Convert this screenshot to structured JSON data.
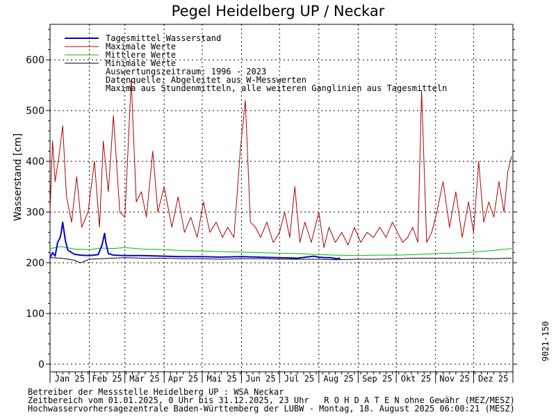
{
  "chart_data": {
    "type": "line",
    "title": "Pegel Heidelberg UP / Neckar",
    "ylabel": "Wasserstand [cm]",
    "ylim": [
      -15,
      670
    ],
    "yticks": [
      0,
      100,
      200,
      300,
      400,
      500,
      600
    ],
    "x_range": [
      "01.01.2025",
      "31.12.2025"
    ],
    "months": [
      "Jan 25",
      "Feb 25",
      "Mär 25",
      "Apr 25",
      "Mai 25",
      "Jun 25",
      "Jul 25",
      "Aug 25",
      "Sep 25",
      "Okt 25",
      "Nov 25",
      "Dez 25"
    ],
    "grid": true,
    "legend_position": "top-left",
    "legend_notes": [
      "Auswertungszeitraum: 1996 - 2023",
      "Datenquelle: Abgeleitet aus W-Messwerten",
      "Maxima aus Stundenmitteln, alle weiteren Ganglinien aus Tagesmitteln"
    ],
    "series": [
      {
        "name": "Tagesmittel Wasserstand",
        "color": "#0000cc",
        "x": [
          "01.01.",
          "03.01.",
          "05.01.",
          "07.01.",
          "09.01.",
          "10.01.",
          "11.01.",
          "13.01.",
          "15.01.",
          "20.01.",
          "25.01.",
          "01.02.",
          "08.02.",
          "11.02.",
          "13.02.",
          "14.02.",
          "16.02.",
          "20.02.",
          "01.03.",
          "15.03.",
          "01.04.",
          "15.04.",
          "01.05.",
          "15.05.",
          "01.06.",
          "15.06.",
          "01.07.",
          "15.07.",
          "28.07.",
          "01.08.",
          "06.08.",
          "10.08.",
          "15.08.",
          "18.08."
        ],
        "values": [
          210,
          220,
          213,
          240,
          250,
          262,
          280,
          245,
          225,
          217,
          215,
          214,
          216,
          235,
          258,
          240,
          218,
          215,
          214,
          214,
          213,
          212,
          212,
          211,
          212,
          211,
          210,
          209,
          213,
          211,
          210,
          210,
          208,
          209
        ]
      },
      {
        "name": "Maximale Werte",
        "color": "#aa0000",
        "x": [
          "01.01.",
          "03.01.",
          "05.01.",
          "08.01.",
          "11.01.",
          "14.01.",
          "18.01.",
          "22.01.",
          "26.01.",
          "31.01.",
          "05.02.",
          "09.02.",
          "12.02.",
          "16.02.",
          "20.02.",
          "25.02.",
          "01.03.",
          "06.03.",
          "10.03.",
          "14.03.",
          "18.03.",
          "23.03.",
          "27.03.",
          "01.04.",
          "07.04.",
          "12.04.",
          "17.04.",
          "22.04.",
          "27.04.",
          "02.05.",
          "07.05.",
          "12.05.",
          "17.05.",
          "21.05.",
          "26.05.",
          "31.05.",
          "04.06.",
          "08.06.",
          "12.06.",
          "16.06.",
          "21.06.",
          "26.06.",
          "01.07.",
          "05.07.",
          "09.07.",
          "13.07.",
          "17.07.",
          "21.07.",
          "26.07.",
          "01.08.",
          "05.08.",
          "09.08.",
          "14.08.",
          "19.08.",
          "24.08.",
          "29.08.",
          "03.09.",
          "08.09.",
          "13.09.",
          "18.09.",
          "23.09.",
          "28.09.",
          "02.10.",
          "06.10.",
          "10.10.",
          "14.10.",
          "18.10.",
          "21.10.",
          "25.10.",
          "29.10.",
          "02.11.",
          "07.11.",
          "12.11.",
          "17.11.",
          "22.11.",
          "27.11.",
          "01.12.",
          "05.12.",
          "09.12.",
          "13.12.",
          "17.12.",
          "21.12.",
          "25.12.",
          "28.12.",
          "31.12."
        ],
        "values": [
          300,
          440,
          360,
          410,
          470,
          330,
          280,
          370,
          270,
          300,
          400,
          270,
          440,
          340,
          490,
          300,
          290,
          560,
          320,
          340,
          290,
          420,
          300,
          350,
          270,
          330,
          260,
          290,
          250,
          320,
          260,
          280,
          250,
          270,
          250,
          420,
          520,
          280,
          270,
          250,
          280,
          240,
          260,
          300,
          250,
          350,
          240,
          280,
          240,
          300,
          230,
          270,
          240,
          260,
          235,
          270,
          240,
          260,
          250,
          270,
          250,
          280,
          260,
          240,
          250,
          270,
          240,
          540,
          240,
          260,
          300,
          360,
          270,
          340,
          250,
          320,
          260,
          400,
          280,
          320,
          290,
          360,
          300,
          380,
          410
        ],
        "note": "approximate"
      },
      {
        "name": "Mittlere Werte",
        "color": "#00bb00",
        "x": [
          "01.01.",
          "10.01.",
          "20.01.",
          "01.02.",
          "10.02.",
          "20.02.",
          "01.03.",
          "15.03.",
          "01.04.",
          "15.04.",
          "01.05.",
          "15.05.",
          "01.06.",
          "15.06.",
          "01.07.",
          "15.07.",
          "01.08.",
          "15.08.",
          "01.09.",
          "15.09.",
          "01.10.",
          "15.10.",
          "01.11.",
          "15.11.",
          "01.12.",
          "15.12.",
          "31.12."
        ],
        "values": [
          228,
          232,
          227,
          226,
          229,
          228,
          230,
          227,
          226,
          224,
          223,
          222,
          221,
          220,
          219,
          218,
          216,
          215,
          214,
          215,
          215,
          216,
          218,
          219,
          221,
          224,
          228
        ]
      },
      {
        "name": "Minimale Werte",
        "color": "#000000",
        "x": [
          "01.01.",
          "10.01.",
          "20.01.",
          "25.01.",
          "01.02.",
          "10.02.",
          "20.02.",
          "01.03.",
          "15.03.",
          "01.04.",
          "15.04.",
          "01.05.",
          "15.05.",
          "01.06.",
          "15.06.",
          "01.07.",
          "15.07.",
          "01.08.",
          "15.08.",
          "01.09.",
          "15.09.",
          "01.10.",
          "15.10.",
          "01.11.",
          "15.11.",
          "01.12.",
          "15.12.",
          "31.12."
        ],
        "values": [
          210,
          209,
          205,
          200,
          207,
          208,
          209,
          210,
          209,
          209,
          208,
          208,
          207,
          208,
          208,
          207,
          207,
          207,
          206,
          207,
          207,
          208,
          209,
          209,
          209,
          209,
          208,
          209
        ]
      }
    ]
  },
  "footer": {
    "line1": "Betreiber der Messstelle Heidelberg UP : WSA Neckar",
    "line2": "Zeitbereich vom 01.01.2025, 0 Uhr bis 31.12.2025, 23 Uhr   R O H D A T E N ohne Gewähr (MEZ/MESZ)",
    "line3": "Hochwasservorhersagezentrale Baden-Württemberg der LUBW - Montag, 18. August 2025 06:00:21 (MESZ)"
  },
  "side_id": "9021-150"
}
